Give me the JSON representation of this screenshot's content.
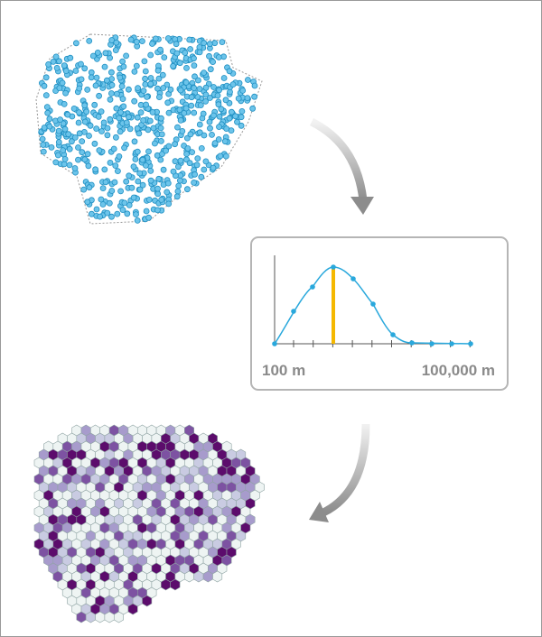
{
  "chart": {
    "x_min_label": "100 m",
    "x_max_label": "100,000 m"
  }
}
